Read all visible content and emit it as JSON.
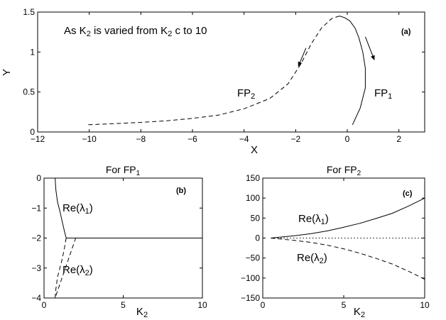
{
  "chart_data": [
    {
      "panel": "(a)",
      "type": "line",
      "annotation": "As K₂ is varied from K₂ c to 10",
      "title": "",
      "xlabel": "X",
      "ylabel": "Y",
      "xlim": [
        -12,
        3
      ],
      "ylim": [
        0,
        1.5
      ],
      "xticks": [
        -12,
        -10,
        -8,
        -6,
        -4,
        -2,
        0,
        2
      ],
      "yticks": [
        0,
        0.5,
        1,
        1.5
      ],
      "tick_labels_x": [
        "−12",
        "−10",
        "−8",
        "−6",
        "−4",
        "−2",
        "0",
        "2"
      ],
      "tick_labels_y": [
        "0",
        "0.5",
        "1",
        "1.5"
      ],
      "series": [
        {
          "name": "FP₁",
          "style": "solid",
          "x": [
            0.2,
            0.5,
            0.7,
            0.7,
            0.6,
            0.45,
            0.3,
            0.1,
            -0.1,
            -0.3
          ],
          "y": [
            0.09,
            0.3,
            0.55,
            0.8,
            1.0,
            1.18,
            1.3,
            1.39,
            1.43,
            1.45
          ]
        },
        {
          "name": "FP₂",
          "style": "dashed",
          "x": [
            -0.3,
            -0.6,
            -1.0,
            -1.4,
            -1.8,
            -2.3,
            -3.0,
            -4.0,
            -5.0,
            -6.0,
            -7.0,
            -8.0,
            -9.0,
            -10.1
          ],
          "y": [
            1.45,
            1.42,
            1.3,
            1.1,
            0.85,
            0.6,
            0.42,
            0.29,
            0.21,
            0.17,
            0.14,
            0.12,
            0.105,
            0.09
          ]
        }
      ],
      "labels": [
        "FP₁",
        "FP₂"
      ],
      "arrows": [
        {
          "series": "FP₂",
          "from": [
            -1.6,
            1.05
          ],
          "to": [
            -1.9,
            0.82
          ]
        },
        {
          "series": "FP₁",
          "from": [
            0.7,
            1.19
          ],
          "to": [
            1.05,
            0.9
          ]
        }
      ]
    },
    {
      "panel": "(b)",
      "type": "line",
      "title": "For FP₁",
      "xlabel": "K₂",
      "ylabel": "",
      "xlim": [
        0,
        10
      ],
      "ylim": [
        -4,
        0
      ],
      "xticks": [
        0,
        5,
        10
      ],
      "yticks": [
        -4,
        -3,
        -2,
        -1,
        0
      ],
      "tick_labels_x": [
        "0",
        "5",
        "10"
      ],
      "tick_labels_y": [
        "−4",
        "−3",
        "−2",
        "−1",
        "0"
      ],
      "series": [
        {
          "name": "Re(λ₁)",
          "style": "solid",
          "x": [
            0.7,
            0.75,
            0.85,
            1.0,
            1.15,
            1.3,
            1.4,
            2,
            4,
            6,
            8,
            10
          ],
          "y": [
            0.0,
            -0.4,
            -0.8,
            -1.1,
            -1.45,
            -1.8,
            -2.0,
            -2.0,
            -2.0,
            -2.0,
            -2.0,
            -2.0
          ]
        },
        {
          "name": "Re(λ₂)",
          "style": "dashed",
          "x": [
            1.4,
            1.3,
            1.15,
            1.0,
            0.85,
            0.75,
            0.7,
            2,
            4,
            6,
            8,
            10
          ],
          "y": [
            -2.0,
            -2.3,
            -2.7,
            -3.0,
            -3.3,
            -3.7,
            -4.0,
            -2.0,
            -2.0,
            -2.0,
            -2.0,
            -2.0
          ]
        }
      ],
      "labels": [
        "Re(λ₁)",
        "Re(λ₂)"
      ]
    },
    {
      "panel": "(c)",
      "type": "line",
      "title": "For FP₂",
      "xlabel": "K₂",
      "ylabel": "",
      "xlim": [
        0,
        10
      ],
      "ylim": [
        -150,
        150
      ],
      "xticks": [
        0,
        5,
        10
      ],
      "yticks": [
        -150,
        -100,
        -50,
        0,
        50,
        100,
        150
      ],
      "tick_labels_x": [
        "0",
        "5",
        "10"
      ],
      "tick_labels_y": [
        "−150",
        "−100",
        "−50",
        "0",
        "50",
        "100",
        "150"
      ],
      "series": [
        {
          "name": "Re(λ₁)",
          "style": "solid",
          "x": [
            0.5,
            1,
            2,
            3,
            4,
            5,
            6,
            7,
            8,
            9,
            10
          ],
          "y": [
            0,
            2,
            6,
            11,
            18,
            27,
            37,
            49,
            62,
            80,
            100
          ]
        },
        {
          "name": "Re(λ₂)",
          "style": "dashed",
          "x": [
            0.5,
            1,
            2,
            3,
            4,
            5,
            6,
            7,
            8,
            9,
            10
          ],
          "y": [
            0,
            -2,
            -6,
            -11,
            -18,
            -27,
            -38,
            -51,
            -65,
            -83,
            -103
          ]
        },
        {
          "name": "zero line",
          "style": "dotted",
          "x": [
            0.5,
            10
          ],
          "y": [
            0,
            0
          ]
        }
      ],
      "labels": [
        "Re(λ₁)",
        "Re(λ₂)"
      ]
    }
  ],
  "panel_labels": [
    "(a)",
    "(b)",
    "(c)"
  ]
}
